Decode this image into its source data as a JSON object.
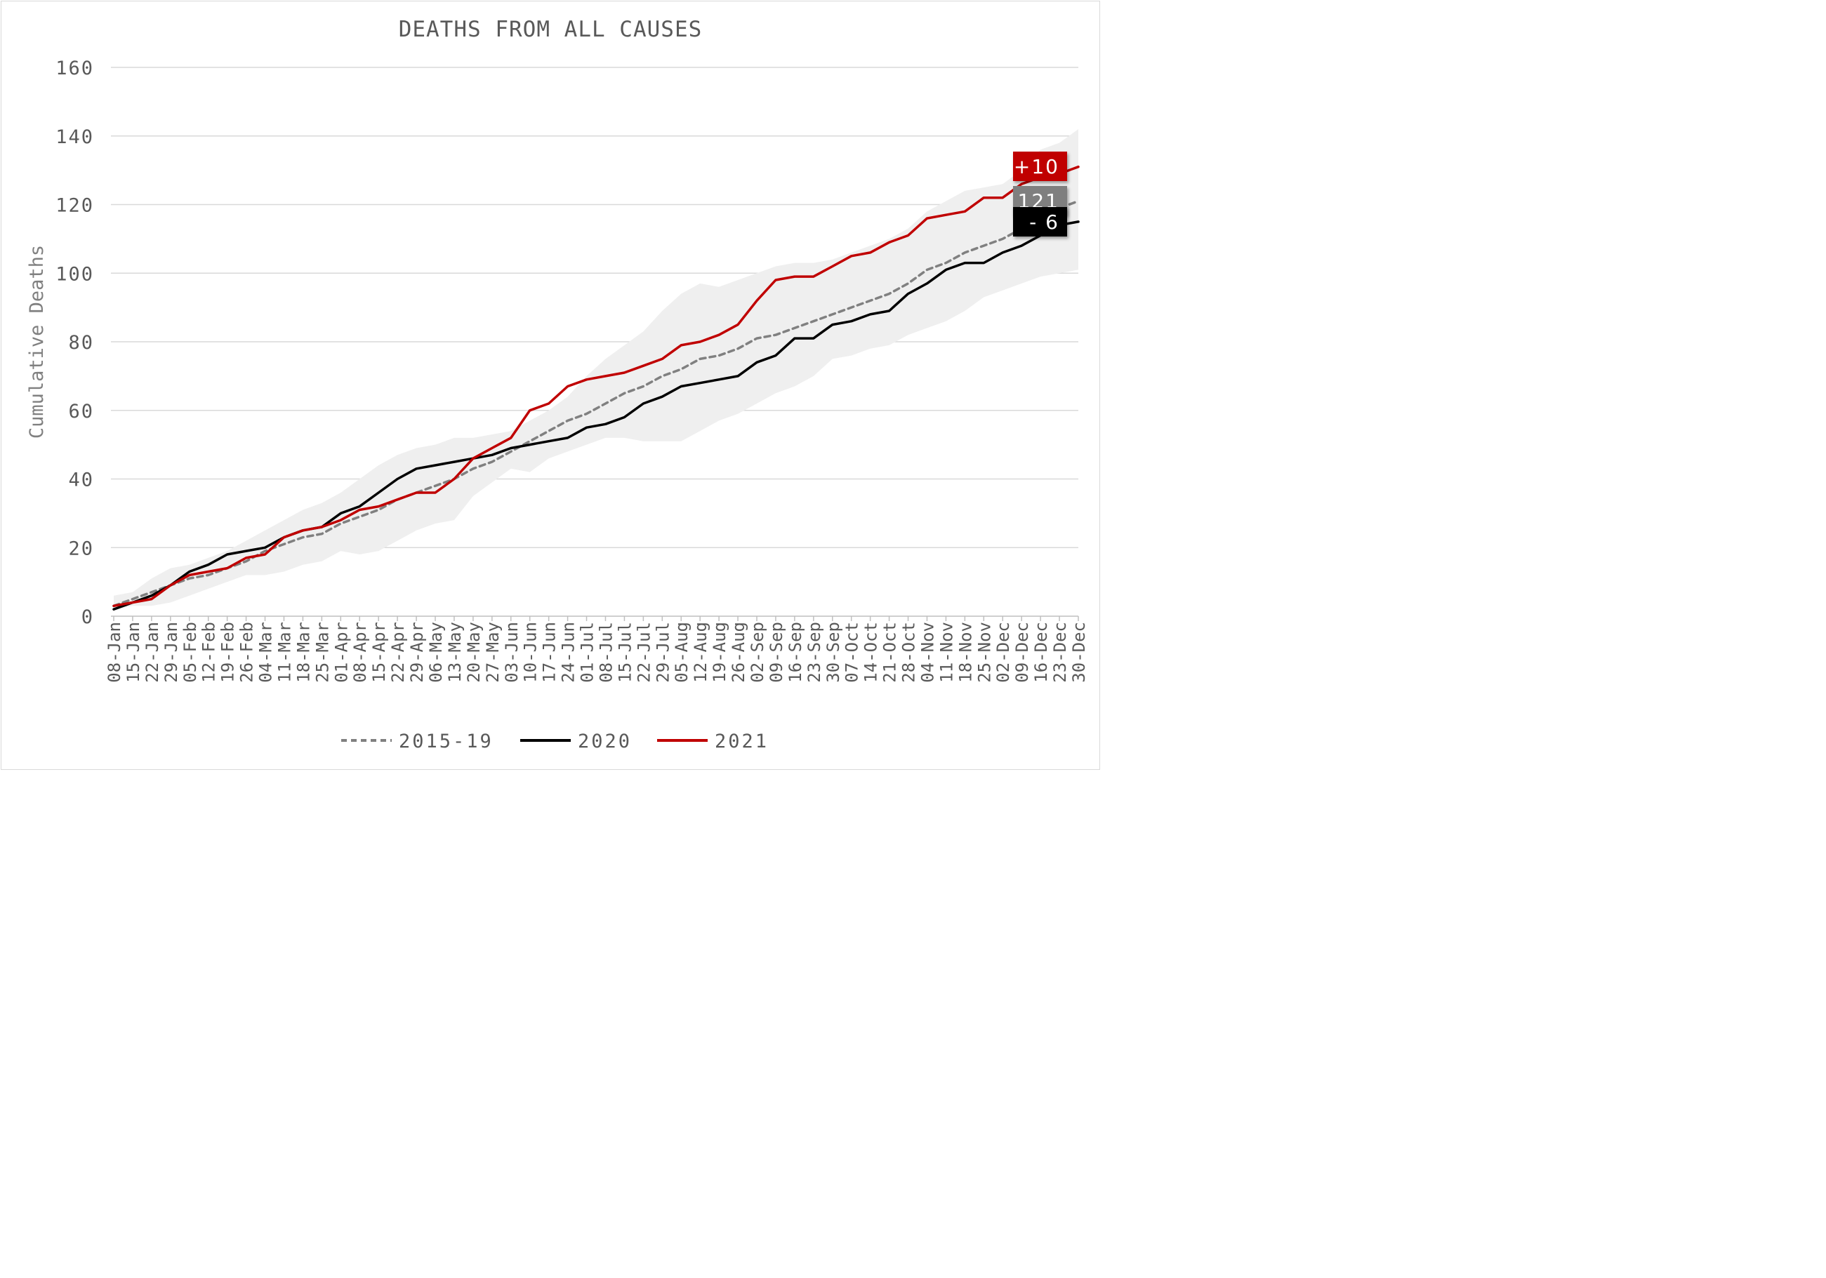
{
  "chart_data": {
    "type": "line",
    "title": "DEATHS FROM ALL CAUSES",
    "ylabel": "Cumulative Deaths",
    "xlabel": "",
    "ylim": [
      0,
      160
    ],
    "yticks": [
      0,
      20,
      40,
      60,
      80,
      100,
      120,
      140,
      160
    ],
    "grid": "horizontal",
    "legend_position": "bottom",
    "categories": [
      "08-Jan",
      "15-Jan",
      "22-Jan",
      "29-Jan",
      "05-Feb",
      "12-Feb",
      "19-Feb",
      "26-Feb",
      "04-Mar",
      "11-Mar",
      "18-Mar",
      "25-Mar",
      "01-Apr",
      "08-Apr",
      "15-Apr",
      "22-Apr",
      "29-Apr",
      "06-May",
      "13-May",
      "20-May",
      "27-May",
      "03-Jun",
      "10-Jun",
      "17-Jun",
      "24-Jun",
      "01-Jul",
      "08-Jul",
      "15-Jul",
      "22-Jul",
      "29-Jul",
      "05-Aug",
      "12-Aug",
      "19-Aug",
      "26-Aug",
      "02-Sep",
      "09-Sep",
      "16-Sep",
      "23-Sep",
      "30-Sep",
      "07-Oct",
      "14-Oct",
      "21-Oct",
      "28-Oct",
      "04-Nov",
      "11-Nov",
      "18-Nov",
      "25-Nov",
      "02-Dec",
      "09-Dec",
      "16-Dec",
      "23-Dec",
      "30-Dec"
    ],
    "band": {
      "color": "#efefef",
      "upper": [
        6,
        7,
        11,
        14,
        15,
        17,
        19,
        22,
        25,
        28,
        31,
        33,
        36,
        40,
        44,
        47,
        49,
        50,
        52,
        52,
        53,
        54,
        57,
        60,
        64,
        70,
        75,
        79,
        83,
        89,
        94,
        97,
        96,
        98,
        100,
        102,
        103,
        103,
        104,
        106,
        108,
        110,
        113,
        118,
        121,
        124,
        125,
        126,
        130,
        136,
        138,
        142
      ],
      "lower": [
        2,
        3,
        3,
        4,
        6,
        8,
        10,
        12,
        12,
        13,
        15,
        16,
        19,
        18,
        19,
        22,
        25,
        27,
        28,
        35,
        39,
        43,
        42,
        46,
        48,
        50,
        52,
        52,
        51,
        51,
        51,
        54,
        57,
        59,
        62,
        65,
        67,
        70,
        75,
        76,
        78,
        79,
        82,
        84,
        86,
        89,
        93,
        95,
        97,
        99,
        100,
        101
      ]
    },
    "series": [
      {
        "name": "2015-19",
        "color": "#808080",
        "style": "dashed",
        "values": [
          3,
          5,
          7,
          9,
          11,
          12,
          14,
          16,
          19,
          21,
          23,
          24,
          27,
          29,
          31,
          34,
          36,
          38,
          40,
          43,
          45,
          48,
          51,
          54,
          57,
          59,
          62,
          65,
          67,
          70,
          72,
          75,
          76,
          78,
          81,
          82,
          84,
          86,
          88,
          90,
          92,
          94,
          97,
          101,
          103,
          106,
          108,
          110,
          113,
          116,
          119,
          121
        ]
      },
      {
        "name": "2020",
        "color": "#000000",
        "style": "solid",
        "values": [
          2,
          4,
          6,
          9,
          13,
          15,
          18,
          19,
          20,
          23,
          25,
          26,
          30,
          32,
          36,
          40,
          43,
          44,
          45,
          46,
          47,
          49,
          50,
          51,
          52,
          55,
          56,
          58,
          62,
          64,
          67,
          68,
          69,
          70,
          74,
          76,
          81,
          81,
          85,
          86,
          88,
          89,
          94,
          97,
          101,
          103,
          103,
          106,
          108,
          111,
          114,
          115
        ]
      },
      {
        "name": "2021",
        "color": "#c00000",
        "style": "solid",
        "values": [
          3,
          4,
          5,
          9,
          12,
          13,
          14,
          17,
          18,
          23,
          25,
          26,
          28,
          31,
          32,
          34,
          36,
          36,
          40,
          46,
          49,
          52,
          60,
          62,
          67,
          69,
          70,
          71,
          73,
          75,
          79,
          80,
          82,
          85,
          92,
          98,
          99,
          99,
          102,
          105,
          106,
          109,
          111,
          116,
          117,
          118,
          122,
          122,
          126,
          128,
          129,
          131
        ]
      }
    ],
    "annotations": [
      {
        "text": "+10",
        "series": "2021",
        "color": "#c00000",
        "text_color": "#ffffff"
      },
      {
        "text": "121",
        "series": "2015-19",
        "color": "#7f7f7f",
        "text_color": "#ffffff"
      },
      {
        "text": "- 6",
        "series": "2020",
        "color": "#000000",
        "text_color": "#ffffff"
      }
    ]
  }
}
